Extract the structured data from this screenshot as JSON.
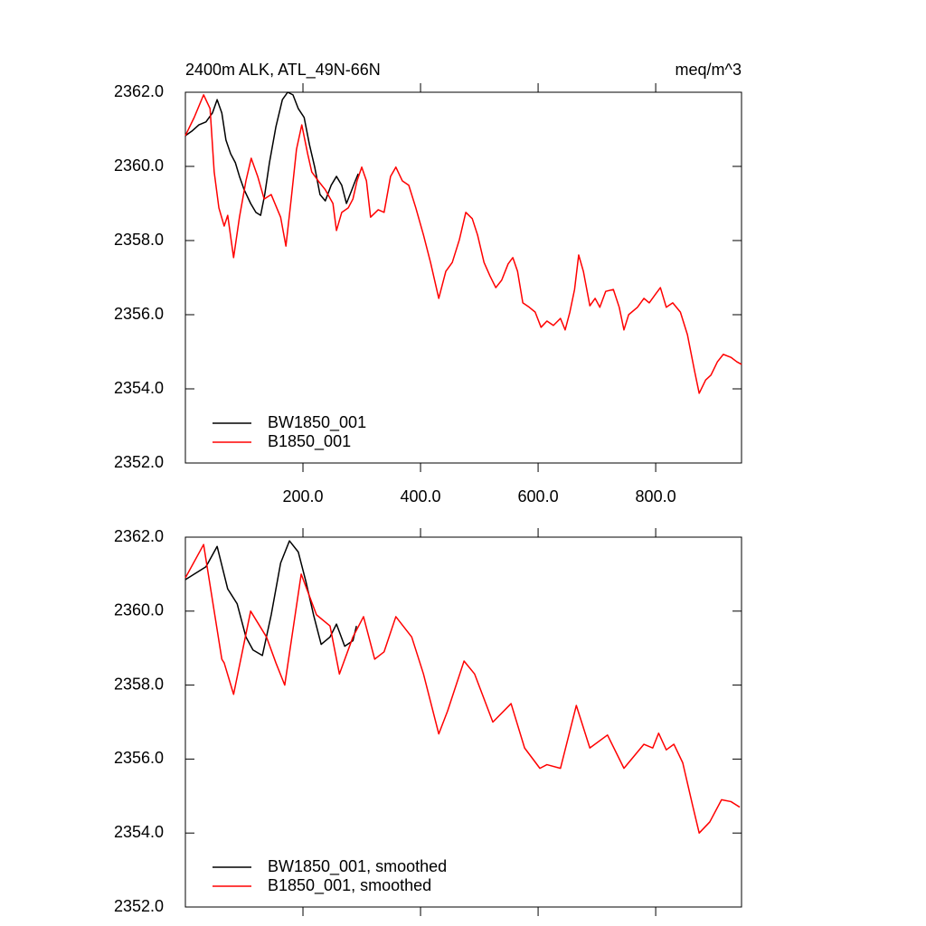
{
  "chart_data": [
    {
      "type": "line",
      "title": "2400m ALK, ATL_49N-66N",
      "units": "meq/m^3",
      "xlim": [
        0,
        946
      ],
      "ylim": [
        2352,
        2362
      ],
      "xticks": [
        {
          "value": 200,
          "label": "200.0"
        },
        {
          "value": 400,
          "label": "400.0"
        },
        {
          "value": 600,
          "label": "600.0"
        },
        {
          "value": 800,
          "label": "800.0"
        }
      ],
      "yticks": [
        {
          "value": 2352,
          "label": "2352.0"
        },
        {
          "value": 2354,
          "label": "2354.0"
        },
        {
          "value": 2356,
          "label": "2356.0"
        },
        {
          "value": 2358,
          "label": "2358.0"
        },
        {
          "value": 2360,
          "label": "2360.0"
        },
        {
          "value": 2362,
          "label": "2362.0"
        }
      ],
      "legend": "lower left",
      "series": [
        {
          "name": "BW1850_001",
          "color": "#000000",
          "x": [
            0,
            11,
            23,
            35,
            46,
            54,
            62,
            69,
            77,
            85,
            92,
            100,
            111,
            120,
            128,
            135,
            143,
            154,
            165,
            174,
            183,
            192,
            202,
            211,
            220,
            229,
            238,
            248,
            257,
            266,
            274,
            282,
            289,
            294
          ],
          "values": [
            2360.83,
            2360.95,
            2361.12,
            2361.2,
            2361.44,
            2361.8,
            2361.44,
            2360.71,
            2360.34,
            2360.1,
            2359.73,
            2359.37,
            2359.0,
            2358.76,
            2358.68,
            2359.24,
            2360.1,
            2361.07,
            2361.8,
            2362.0,
            2361.93,
            2361.56,
            2361.32,
            2360.59,
            2359.98,
            2359.24,
            2359.07,
            2359.49,
            2359.73,
            2359.49,
            2359.0,
            2359.32,
            2359.61,
            2359.8
          ]
        },
        {
          "name": "B1850_001",
          "color": "#ff0000",
          "x": [
            0,
            15,
            31,
            42,
            49,
            57,
            66,
            72,
            82,
            92,
            103,
            112,
            123,
            134,
            146,
            162,
            171,
            180,
            189,
            198,
            208,
            215,
            226,
            238,
            251,
            257,
            266,
            277,
            285,
            292,
            300,
            308,
            315,
            328,
            338,
            349,
            358,
            369,
            380,
            392,
            405,
            417,
            431,
            443,
            454,
            466,
            477,
            488,
            497,
            508,
            518,
            528,
            538,
            549,
            557,
            565,
            574,
            585,
            595,
            605,
            615,
            626,
            638,
            646,
            654,
            662,
            669,
            677,
            688,
            697,
            705,
            715,
            728,
            738,
            746,
            754,
            769,
            780,
            789,
            800,
            808,
            818,
            829,
            842,
            854,
            866,
            874,
            885,
            894,
            905,
            915,
            928,
            938,
            946
          ],
          "values": [
            2360.83,
            2361.32,
            2361.93,
            2361.56,
            2359.85,
            2358.88,
            2358.39,
            2358.68,
            2357.54,
            2358.63,
            2359.61,
            2360.22,
            2359.73,
            2359.12,
            2359.24,
            2358.63,
            2357.85,
            2359.12,
            2360.46,
            2361.12,
            2360.34,
            2359.85,
            2359.61,
            2359.37,
            2359.0,
            2358.27,
            2358.76,
            2358.88,
            2359.12,
            2359.61,
            2359.98,
            2359.61,
            2358.63,
            2358.83,
            2358.76,
            2359.73,
            2359.98,
            2359.61,
            2359.49,
            2358.88,
            2358.15,
            2357.41,
            2356.44,
            2357.17,
            2357.41,
            2358.02,
            2358.76,
            2358.59,
            2358.15,
            2357.41,
            2357.05,
            2356.73,
            2356.93,
            2357.37,
            2357.54,
            2357.17,
            2356.32,
            2356.2,
            2356.07,
            2355.66,
            2355.83,
            2355.71,
            2355.9,
            2355.59,
            2356.07,
            2356.68,
            2357.61,
            2357.17,
            2356.24,
            2356.44,
            2356.2,
            2356.63,
            2356.68,
            2356.2,
            2355.59,
            2356.0,
            2356.2,
            2356.44,
            2356.32,
            2356.56,
            2356.73,
            2356.2,
            2356.32,
            2356.07,
            2355.46,
            2354.49,
            2353.88,
            2354.24,
            2354.37,
            2354.73,
            2354.93,
            2354.85,
            2354.73,
            2354.66
          ]
        }
      ]
    },
    {
      "type": "line",
      "xlim": [
        0,
        946
      ],
      "ylim": [
        2352,
        2362
      ],
      "xticks": [
        200,
        400,
        600,
        800
      ],
      "xtick_labels": false,
      "yticks": [
        {
          "value": 2352,
          "label": "2352.0"
        },
        {
          "value": 2354,
          "label": "2354.0"
        },
        {
          "value": 2356,
          "label": "2356.0"
        },
        {
          "value": 2358,
          "label": "2358.0"
        },
        {
          "value": 2360,
          "label": "2360.0"
        },
        {
          "value": 2362,
          "label": "2362.0"
        }
      ],
      "legend": "lower left",
      "series": [
        {
          "name": "BW1850_001, smoothed",
          "color": "#000000",
          "x": [
            0,
            15,
            35,
            54,
            72,
            88,
            103,
            115,
            131,
            146,
            162,
            177,
            192,
            205,
            218,
            231,
            246,
            257,
            271,
            285,
            291
          ],
          "values": [
            2360.85,
            2361.0,
            2361.2,
            2361.75,
            2360.6,
            2360.2,
            2359.3,
            2358.95,
            2358.8,
            2359.9,
            2361.3,
            2361.9,
            2361.6,
            2360.8,
            2359.9,
            2359.1,
            2359.3,
            2359.65,
            2359.05,
            2359.2,
            2359.6
          ]
        },
        {
          "name": "B1850_001, smoothed",
          "color": "#ff0000",
          "x": [
            0,
            31,
            62,
            66,
            82,
            111,
            138,
            154,
            169,
            197,
            223,
            246,
            262,
            285,
            303,
            322,
            338,
            358,
            385,
            405,
            431,
            446,
            474,
            492,
            523,
            554,
            577,
            603,
            615,
            638,
            665,
            688,
            718,
            746,
            780,
            795,
            805,
            818,
            831,
            846,
            862,
            874,
            892,
            912,
            928,
            943
          ],
          "values": [
            2360.9,
            2361.8,
            2358.7,
            2358.6,
            2357.75,
            2360.0,
            2359.3,
            2358.6,
            2358.0,
            2361.0,
            2359.9,
            2359.6,
            2358.3,
            2359.3,
            2359.85,
            2358.7,
            2358.9,
            2359.85,
            2359.3,
            2358.3,
            2356.68,
            2357.3,
            2358.65,
            2358.3,
            2357.0,
            2357.5,
            2356.3,
            2355.75,
            2355.85,
            2355.75,
            2357.45,
            2356.3,
            2356.65,
            2355.75,
            2356.4,
            2356.3,
            2356.7,
            2356.25,
            2356.4,
            2355.9,
            2354.8,
            2354.0,
            2354.3,
            2354.9,
            2354.85,
            2354.7
          ]
        }
      ]
    }
  ]
}
